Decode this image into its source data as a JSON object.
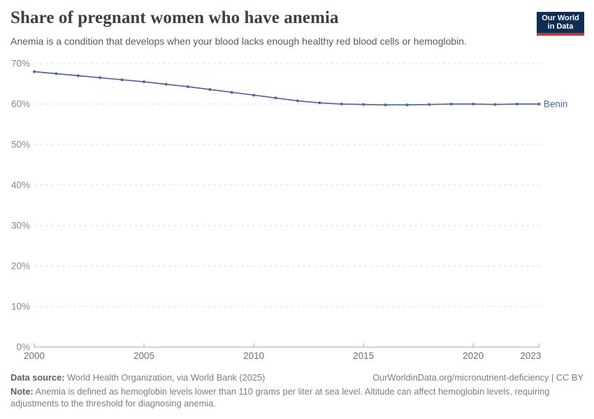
{
  "header": {
    "title": "Share of pregnant women who have anemia",
    "subtitle": "Anemia is a condition that develops when your blood lacks enough healthy red blood cells or hemoglobin.",
    "logo": {
      "line1": "Our World",
      "line2": "in Data",
      "bg_color": "#0e2e55",
      "bar_color": "#d0342c",
      "text_color": "#ffffff"
    }
  },
  "chart_data": {
    "type": "line",
    "title": "Share of pregnant women who have anemia",
    "xlabel": "",
    "ylabel": "",
    "xlim": [
      2000,
      2023
    ],
    "ylim": [
      0,
      70
    ],
    "x_ticks": [
      2000,
      2005,
      2010,
      2015,
      2020,
      2023
    ],
    "y_ticks": [
      0,
      10,
      20,
      30,
      40,
      50,
      60,
      70
    ],
    "y_tick_suffix": "%",
    "grid": "horizontal-dashed",
    "legend_position": "end-of-line-label",
    "x": [
      2000,
      2001,
      2002,
      2003,
      2004,
      2005,
      2006,
      2007,
      2008,
      2009,
      2010,
      2011,
      2012,
      2013,
      2014,
      2015,
      2016,
      2017,
      2018,
      2019,
      2020,
      2021,
      2022,
      2023
    ],
    "series": [
      {
        "name": "Benin",
        "color": "#4c6a9e",
        "values": [
          68.0,
          67.5,
          67.0,
          66.5,
          66.0,
          65.5,
          64.9,
          64.3,
          63.6,
          62.9,
          62.2,
          61.5,
          60.8,
          60.3,
          60.0,
          59.9,
          59.8,
          59.8,
          59.9,
          60.0,
          60.0,
          59.9,
          60.0,
          60.0
        ]
      }
    ],
    "style": {
      "grid_color": "#dddddd",
      "axis_color": "#a6a6a6",
      "y_label_color": "#898989",
      "x_label_color": "#6e6e6e",
      "tick_font_size": 13.5
    }
  },
  "footer": {
    "source_label": "Data source:",
    "source_text": " World Health Organization, via World Bank (2025)",
    "rights": "OurWorldinData.org/micronutrient-deficiency | CC BY",
    "note_label": "Note:",
    "note_text": " Anemia is defined as hemoglobin levels lower than 110 grams per liter at sea level. Altitude can affect hemoglobin levels, requiring adjustments to the threshold for diagnosing anemia."
  }
}
